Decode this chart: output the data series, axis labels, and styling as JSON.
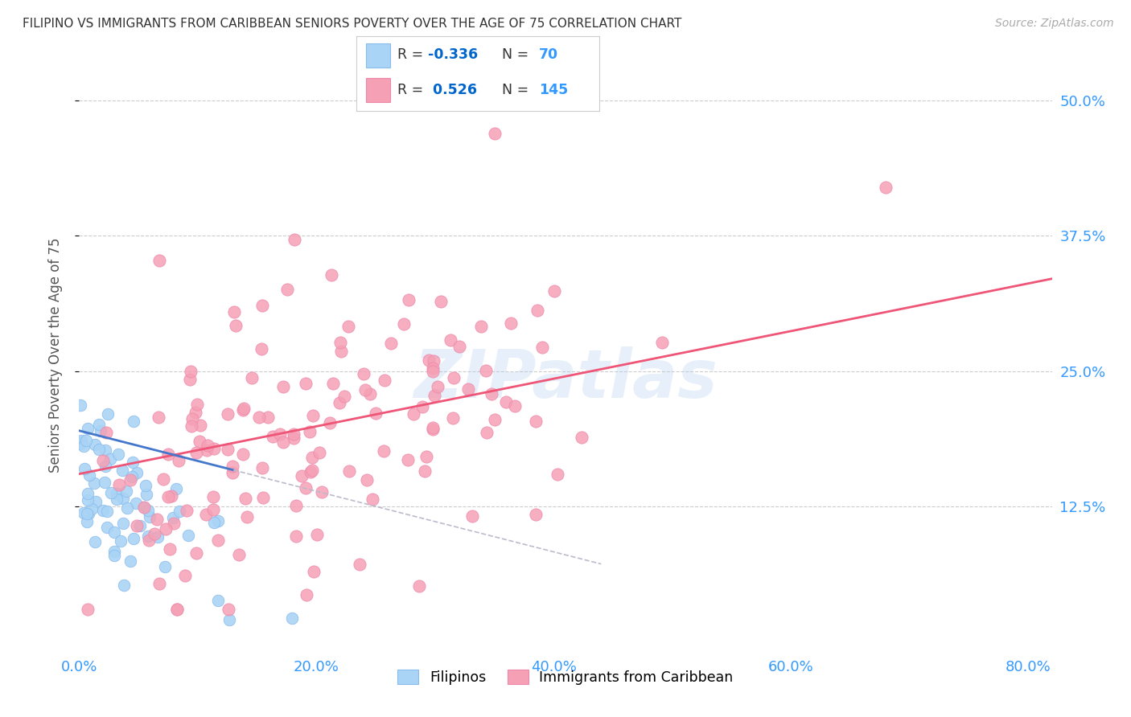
{
  "title": "FILIPINO VS IMMIGRANTS FROM CARIBBEAN SENIORS POVERTY OVER THE AGE OF 75 CORRELATION CHART",
  "source": "Source: ZipAtlas.com",
  "ylabel": "Seniors Poverty Over the Age of 75",
  "xlabel_ticks": [
    "0.0%",
    "20.0%",
    "40.0%",
    "60.0%",
    "80.0%"
  ],
  "xlabel_vals": [
    0.0,
    0.2,
    0.4,
    0.6,
    0.8
  ],
  "ylabel_ticks": [
    "12.5%",
    "25.0%",
    "37.5%",
    "50.0%"
  ],
  "ylabel_vals": [
    0.125,
    0.25,
    0.375,
    0.5
  ],
  "xlim": [
    0.0,
    0.82
  ],
  "ylim": [
    -0.01,
    0.54
  ],
  "filipino_R": -0.336,
  "filipino_N": 70,
  "caribbean_R": 0.526,
  "caribbean_N": 145,
  "filipino_color": "#aad4f5",
  "caribbean_color": "#f5a0b5",
  "filipino_edge": "#88bbee",
  "caribbean_edge": "#ee88aa",
  "trendline_filipino_color": "#4477cc",
  "trendline_caribbean_color": "#ee5577",
  "trendline_extend_color": "#bbbbcc",
  "grid_color": "#cccccc",
  "watermark_color": "#aaccee",
  "title_color": "#333333",
  "axis_label_color": "#555555",
  "tick_label_color": "#3399ff",
  "source_color": "#aaaaaa",
  "legend_R_color": "#0066cc",
  "legend_N_color": "#3399ff",
  "background_color": "#ffffff"
}
